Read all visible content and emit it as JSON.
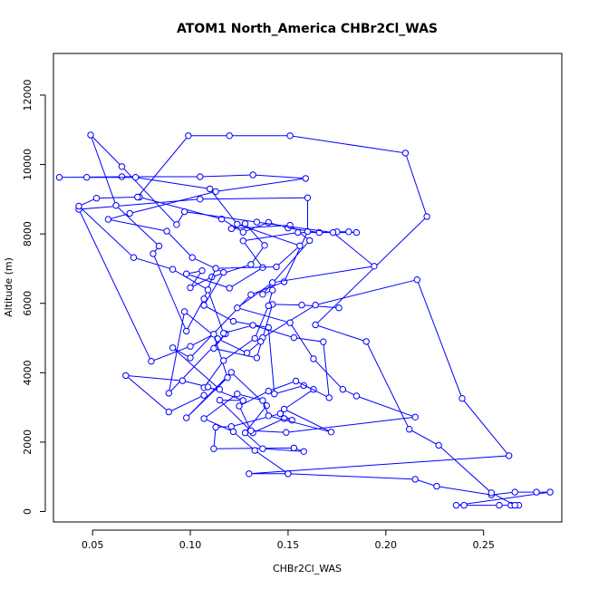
{
  "chart_data": {
    "type": "line",
    "title": "ATOM1 North_America CHBr2Cl_WAS",
    "xlabel": "CHBr2Cl_WAS",
    "ylabel": "Altitude (m)",
    "xlim": [
      0.03,
      0.29
    ],
    "ylim": [
      -300,
      13200
    ],
    "xticks": [
      0.05,
      0.1,
      0.15,
      0.2,
      0.25
    ],
    "xtick_labels": [
      "0.05",
      "0.10",
      "0.15",
      "0.20",
      "0.25"
    ],
    "yticks": [
      0,
      2000,
      4000,
      6000,
      8000,
      10000,
      12000
    ],
    "ytick_labels": [
      "0",
      "2000",
      "4000",
      "6000",
      "8000",
      "10000",
      "12000"
    ],
    "color": "#0000ff",
    "marker": "open-circle",
    "grid": false,
    "series": [
      {
        "points": [
          [
            0.264,
            180
          ],
          [
            0.268,
            180
          ],
          [
            0.258,
            180
          ],
          [
            0.24,
            180
          ],
          [
            0.236,
            180
          ],
          [
            0.284,
            560
          ],
          [
            0.277,
            560
          ],
          [
            0.266,
            560
          ],
          [
            0.254,
            480
          ],
          [
            0.226,
            730
          ],
          [
            0.215,
            930
          ],
          [
            0.15,
            1090
          ],
          [
            0.13,
            1090
          ],
          [
            0.263,
            1610
          ],
          [
            0.239,
            3260
          ],
          [
            0.216,
            6680
          ],
          [
            0.164,
            5950
          ],
          [
            0.137,
            5010
          ],
          [
            0.136,
            4900
          ],
          [
            0.129,
            4570
          ],
          [
            0.114,
            4980
          ],
          [
            0.097,
            5760
          ],
          [
            0.089,
            3410
          ],
          [
            0.118,
            5120
          ],
          [
            0.112,
            4700
          ],
          [
            0.134,
            4430
          ],
          [
            0.142,
            5970
          ],
          [
            0.157,
            5950
          ],
          [
            0.176,
            5870
          ]
        ]
      },
      {
        "points": [
          [
            0.074,
            9060
          ],
          [
            0.116,
            8430
          ],
          [
            0.127,
            8050
          ],
          [
            0.14,
            8330
          ],
          [
            0.15,
            8170
          ],
          [
            0.166,
            8040
          ],
          [
            0.175,
            8060
          ],
          [
            0.181,
            8060
          ],
          [
            0.185,
            8040
          ],
          [
            0.155,
            8040
          ],
          [
            0.127,
            7800
          ],
          [
            0.137,
            7030
          ],
          [
            0.12,
            6440
          ],
          [
            0.098,
            6850
          ],
          [
            0.106,
            6940
          ],
          [
            0.1,
            6450
          ],
          [
            0.111,
            6760
          ],
          [
            0.131,
            7120
          ],
          [
            0.138,
            7670
          ],
          [
            0.128,
            8300
          ],
          [
            0.121,
            8150
          ],
          [
            0.151,
            8250
          ],
          [
            0.161,
            7810
          ],
          [
            0.137,
            6260
          ],
          [
            0.142,
            6380
          ],
          [
            0.14,
            5930
          ],
          [
            0.133,
            4990
          ],
          [
            0.117,
            4350
          ],
          [
            0.107,
            3570
          ],
          [
            0.115,
            3520
          ],
          [
            0.091,
            4720
          ],
          [
            0.1,
            4430
          ],
          [
            0.131,
            6250
          ],
          [
            0.148,
            6620
          ],
          [
            0.16,
            8070
          ],
          [
            0.16,
            9040
          ],
          [
            0.105,
            9000
          ],
          [
            0.043,
            8710
          ],
          [
            0.08,
            4330
          ],
          [
            0.1,
            4760
          ],
          [
            0.112,
            5110
          ],
          [
            0.119,
            3860
          ],
          [
            0.098,
            2700
          ],
          [
            0.121,
            4010
          ],
          [
            0.139,
            3050
          ],
          [
            0.128,
            2270
          ],
          [
            0.137,
            1810
          ],
          [
            0.158,
            1730
          ],
          [
            0.153,
            1830
          ],
          [
            0.112,
            1810
          ],
          [
            0.113,
            2430
          ],
          [
            0.121,
            2450
          ],
          [
            0.146,
            2820
          ],
          [
            0.152,
            2630
          ],
          [
            0.148,
            2680
          ],
          [
            0.132,
            2270
          ],
          [
            0.115,
            3210
          ],
          [
            0.127,
            3200
          ],
          [
            0.109,
            3590
          ],
          [
            0.096,
            3770
          ],
          [
            0.067,
            3920
          ],
          [
            0.089,
            2870
          ],
          [
            0.107,
            3350
          ]
        ]
      },
      {
        "points": [
          [
            0.033,
            9630
          ],
          [
            0.065,
            9650
          ],
          [
            0.105,
            9650
          ],
          [
            0.132,
            9700
          ],
          [
            0.159,
            9600
          ],
          [
            0.113,
            9220
          ],
          [
            0.069,
            8590
          ],
          [
            0.058,
            8420
          ],
          [
            0.088,
            8080
          ],
          [
            0.101,
            7320
          ],
          [
            0.117,
            6890
          ],
          [
            0.107,
            5940
          ],
          [
            0.122,
            5480
          ],
          [
            0.14,
            5300
          ],
          [
            0.143,
            3390
          ],
          [
            0.158,
            3630
          ],
          [
            0.163,
            3520
          ],
          [
            0.148,
            2950
          ],
          [
            0.172,
            2290
          ],
          [
            0.14,
            2760
          ],
          [
            0.137,
            3200
          ],
          [
            0.124,
            3390
          ],
          [
            0.107,
            2680
          ],
          [
            0.122,
            2300
          ],
          [
            0.133,
            1760
          ],
          [
            0.15,
            1090
          ]
        ]
      },
      {
        "points": [
          [
            0.047,
            9630
          ],
          [
            0.072,
            9630
          ],
          [
            0.11,
            9300
          ],
          [
            0.124,
            8280
          ],
          [
            0.156,
            7660
          ],
          [
            0.144,
            7050
          ],
          [
            0.113,
            7010
          ],
          [
            0.107,
            6130
          ],
          [
            0.098,
            5200
          ],
          [
            0.081,
            7430
          ],
          [
            0.084,
            7650
          ],
          [
            0.062,
            8820
          ],
          [
            0.049,
            10850
          ],
          [
            0.065,
            9940
          ],
          [
            0.093,
            8270
          ],
          [
            0.097,
            8640
          ],
          [
            0.134,
            8340
          ],
          [
            0.173,
            8040
          ],
          [
            0.194,
            7070
          ],
          [
            0.142,
            6600
          ],
          [
            0.124,
            5870
          ],
          [
            0.151,
            5440
          ],
          [
            0.163,
            4400
          ],
          [
            0.178,
            3520
          ],
          [
            0.185,
            3330
          ],
          [
            0.215,
            2720
          ],
          [
            0.149,
            2280
          ],
          [
            0.131,
            2330
          ],
          [
            0.125,
            3040
          ],
          [
            0.14,
            3470
          ],
          [
            0.154,
            3760
          ],
          [
            0.171,
            3280
          ],
          [
            0.168,
            4890
          ],
          [
            0.153,
            5010
          ],
          [
            0.132,
            5370
          ],
          [
            0.117,
            5140
          ],
          [
            0.109,
            6390
          ],
          [
            0.091,
            6980
          ],
          [
            0.071,
            7320
          ],
          [
            0.043,
            8800
          ],
          [
            0.052,
            9030
          ],
          [
            0.073,
            9060
          ],
          [
            0.099,
            10830
          ],
          [
            0.12,
            10830
          ],
          [
            0.151,
            10830
          ],
          [
            0.21,
            10330
          ],
          [
            0.221,
            8500
          ],
          [
            0.164,
            5380
          ],
          [
            0.19,
            4900
          ],
          [
            0.212,
            2370
          ],
          [
            0.227,
            1910
          ],
          [
            0.254,
            540
          ],
          [
            0.266,
            180
          ]
        ]
      }
    ]
  }
}
